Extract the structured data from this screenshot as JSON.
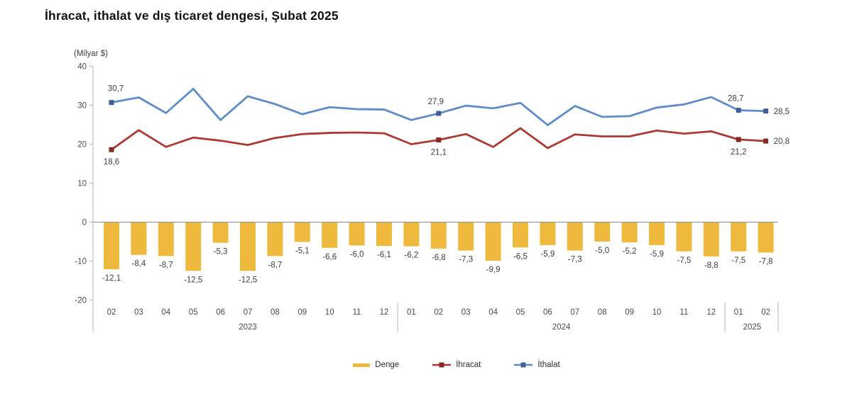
{
  "title": "İhracat, ithalat ve dış ticaret dengesi, Şubat 2025",
  "y_axis_unit": "(Milyar $)",
  "legend": {
    "denge_label": "Denge",
    "ihracat_label": "İhracat",
    "ithalat_label": "İthalat"
  },
  "colors": {
    "bar_yellow": "#EFB93E",
    "exports_red": "#AC3A32",
    "exports_marker": "#872823",
    "imports_blue": "#5D8CC8",
    "imports_marker": "#3D5F96",
    "axis_gray": "#BFBFBF",
    "zero_line_gray": "#9B9B9B",
    "label_text": "#3D3D3D",
    "tick_text": "#4A4A4A"
  },
  "chart_data": {
    "type": "combo (bar + line)",
    "title": "İhracat, ithalat ve dış ticaret dengesi, Şubat 2025",
    "ylabel": "(Milyar $)",
    "ylim": [
      -20,
      40
    ],
    "y_ticks": [
      40,
      30,
      20,
      10,
      0,
      -10,
      -20
    ],
    "grid": "off",
    "legend_position": "bottom-center",
    "categories": [
      "02",
      "03",
      "04",
      "05",
      "06",
      "07",
      "08",
      "09",
      "10",
      "11",
      "12",
      "01",
      "02",
      "03",
      "04",
      "05",
      "06",
      "07",
      "08",
      "09",
      "10",
      "11",
      "12",
      "01",
      "02"
    ],
    "year_groups": [
      {
        "label": "2023",
        "start": 0,
        "end": 10
      },
      {
        "label": "2024",
        "start": 11,
        "end": 22
      },
      {
        "label": "2025",
        "start": 23,
        "end": 24
      }
    ],
    "series": [
      {
        "name": "Denge",
        "type": "bar",
        "values": [
          -12.1,
          -8.4,
          -8.7,
          -12.5,
          -5.3,
          -12.5,
          -8.7,
          -5.1,
          -6.6,
          -6.0,
          -6.1,
          -6.2,
          -6.8,
          -7.3,
          -9.9,
          -6.5,
          -5.9,
          -7.3,
          -5.0,
          -5.2,
          -5.9,
          -7.5,
          -8.8,
          -7.5,
          -7.8
        ],
        "label_all_points": true
      },
      {
        "name": "İhracat",
        "type": "line",
        "values": [
          18.6,
          23.6,
          19.3,
          21.7,
          20.9,
          19.8,
          21.6,
          22.6,
          22.9,
          23.0,
          22.8,
          20.0,
          21.1,
          22.6,
          19.3,
          24.1,
          19.0,
          22.5,
          22.0,
          22.0,
          23.5,
          22.7,
          23.3,
          21.2,
          20.8
        ],
        "labeled_points": [
          0,
          12,
          23,
          24
        ],
        "label_position": "below"
      },
      {
        "name": "İthalat",
        "type": "line",
        "values": [
          30.7,
          32.0,
          28.0,
          34.2,
          26.2,
          32.3,
          30.3,
          27.7,
          29.5,
          29.0,
          28.9,
          26.2,
          27.9,
          29.9,
          29.2,
          30.6,
          24.9,
          29.8,
          27.0,
          27.2,
          29.4,
          30.2,
          32.1,
          28.7,
          28.5
        ],
        "labeled_points": [
          0,
          12,
          23,
          24
        ],
        "label_position": "above"
      }
    ]
  }
}
